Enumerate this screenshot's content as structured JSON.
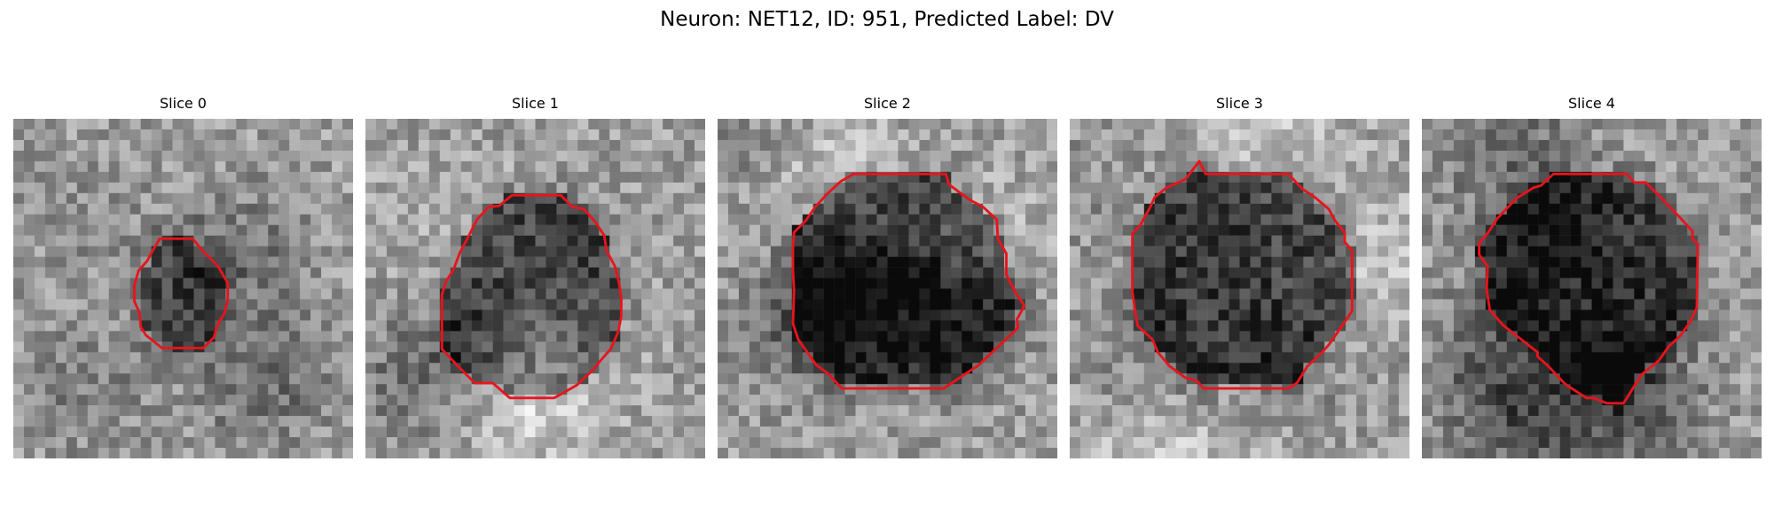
{
  "figure": {
    "title": "Neuron: NET12, ID: 951, Predicted Label: DV"
  },
  "panels": [
    {
      "title": "Slice 0",
      "seed": 11,
      "darkness": 0.7,
      "outline": "slice0-outline"
    },
    {
      "title": "Slice 1",
      "seed": 23,
      "darkness": 0.82,
      "outline": "slice1-outline"
    },
    {
      "title": "Slice 2",
      "seed": 37,
      "darkness": 0.88,
      "outline": "slice2-outline"
    },
    {
      "title": "Slice 3",
      "seed": 41,
      "darkness": 0.86,
      "outline": "slice3-outline"
    },
    {
      "title": "Slice 4",
      "seed": 53,
      "darkness": 0.8,
      "outline": "slice4-outline"
    }
  ],
  "colors": {
    "outline": "#e8141c",
    "background": "#ffffff"
  }
}
